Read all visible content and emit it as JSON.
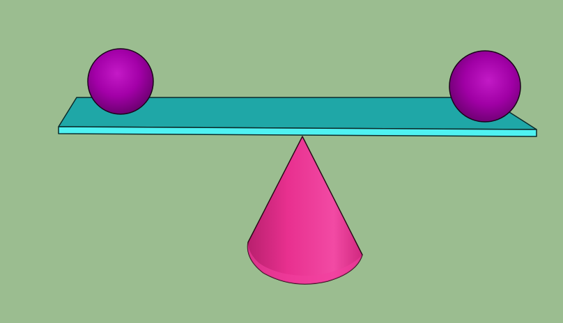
{
  "scene": {
    "background_color": "#9bbd90",
    "objects": [
      {
        "name": "fulcrum-cone",
        "shape": "cone",
        "color": "#e8308f"
      },
      {
        "name": "balance-plank",
        "shape": "plank",
        "color": "#1fa7a7",
        "edge_color": "#4ff2f2"
      },
      {
        "name": "left-sphere",
        "shape": "sphere",
        "color": "#a300a8"
      },
      {
        "name": "right-sphere",
        "shape": "sphere",
        "color": "#a300a8"
      }
    ],
    "balanced": true
  }
}
